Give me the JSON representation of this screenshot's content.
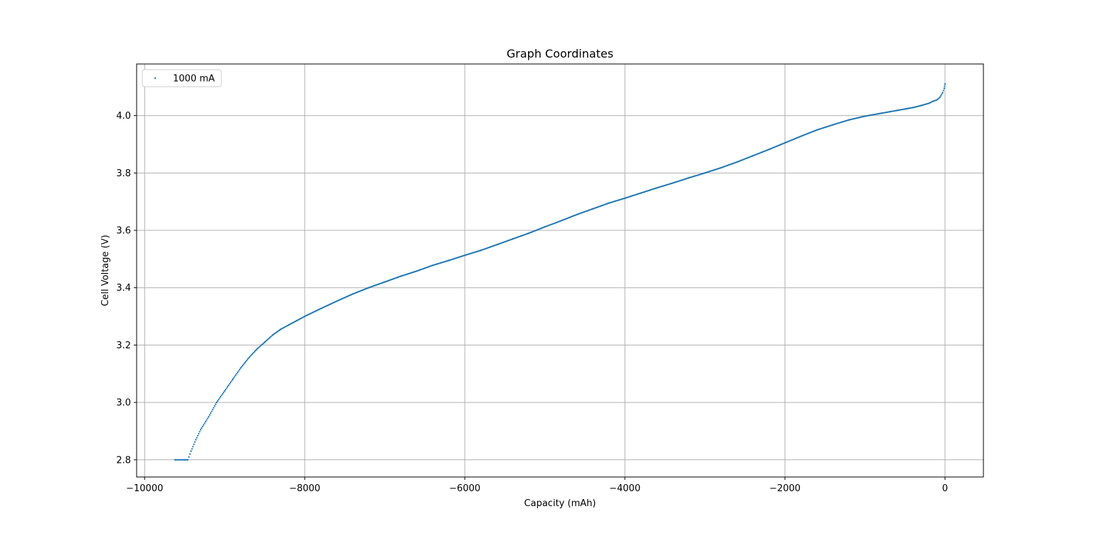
{
  "chart_data": {
    "type": "scatter",
    "title": "Graph Coordinates",
    "xlabel": "Capacity (mAh)",
    "ylabel": "Cell Voltage (V)",
    "xlim": [
      -10100,
      480
    ],
    "ylim": [
      2.74,
      4.18
    ],
    "x_ticks": [
      -10000,
      -8000,
      -6000,
      -4000,
      -2000,
      0
    ],
    "x_tick_labels": [
      "−10000",
      "−8000",
      "−6000",
      "−4000",
      "−2000",
      "0"
    ],
    "y_ticks": [
      2.8,
      3.0,
      3.2,
      3.4,
      3.6,
      3.8,
      4.0
    ],
    "y_tick_labels": [
      "2.8",
      "3.0",
      "3.2",
      "3.4",
      "3.6",
      "3.8",
      "4.0"
    ],
    "grid": true,
    "legend_position": "upper-left",
    "series": [
      {
        "name": "1000 mA",
        "color": "#1f77b4",
        "x": [
          -9620,
          -9500,
          -9460,
          -9420,
          -9360,
          -9300,
          -9200,
          -9100,
          -9000,
          -8900,
          -8800,
          -8700,
          -8600,
          -8500,
          -8400,
          -8300,
          -8200,
          -8100,
          -8000,
          -7800,
          -7600,
          -7400,
          -7200,
          -7000,
          -6800,
          -6600,
          -6400,
          -6200,
          -6000,
          -5800,
          -5600,
          -5400,
          -5200,
          -5000,
          -4800,
          -4600,
          -4400,
          -4200,
          -4000,
          -3800,
          -3600,
          -3400,
          -3200,
          -3000,
          -2800,
          -2600,
          -2400,
          -2200,
          -2000,
          -1800,
          -1600,
          -1400,
          -1200,
          -1000,
          -800,
          -600,
          -400,
          -300,
          -200,
          -150,
          -100,
          -60,
          -30,
          -10,
          0
        ],
        "y": [
          2.8,
          2.8,
          2.8,
          2.83,
          2.87,
          2.905,
          2.95,
          3.0,
          3.04,
          3.08,
          3.12,
          3.155,
          3.185,
          3.21,
          3.235,
          3.255,
          3.27,
          3.285,
          3.3,
          3.327,
          3.353,
          3.378,
          3.4,
          3.42,
          3.44,
          3.458,
          3.478,
          3.495,
          3.513,
          3.53,
          3.55,
          3.57,
          3.59,
          3.612,
          3.633,
          3.655,
          3.675,
          3.695,
          3.712,
          3.73,
          3.748,
          3.765,
          3.783,
          3.8,
          3.818,
          3.838,
          3.86,
          3.882,
          3.905,
          3.928,
          3.95,
          3.968,
          3.985,
          3.998,
          4.008,
          4.018,
          4.028,
          4.035,
          4.043,
          4.05,
          4.055,
          4.065,
          4.08,
          4.095,
          4.11
        ]
      }
    ]
  }
}
